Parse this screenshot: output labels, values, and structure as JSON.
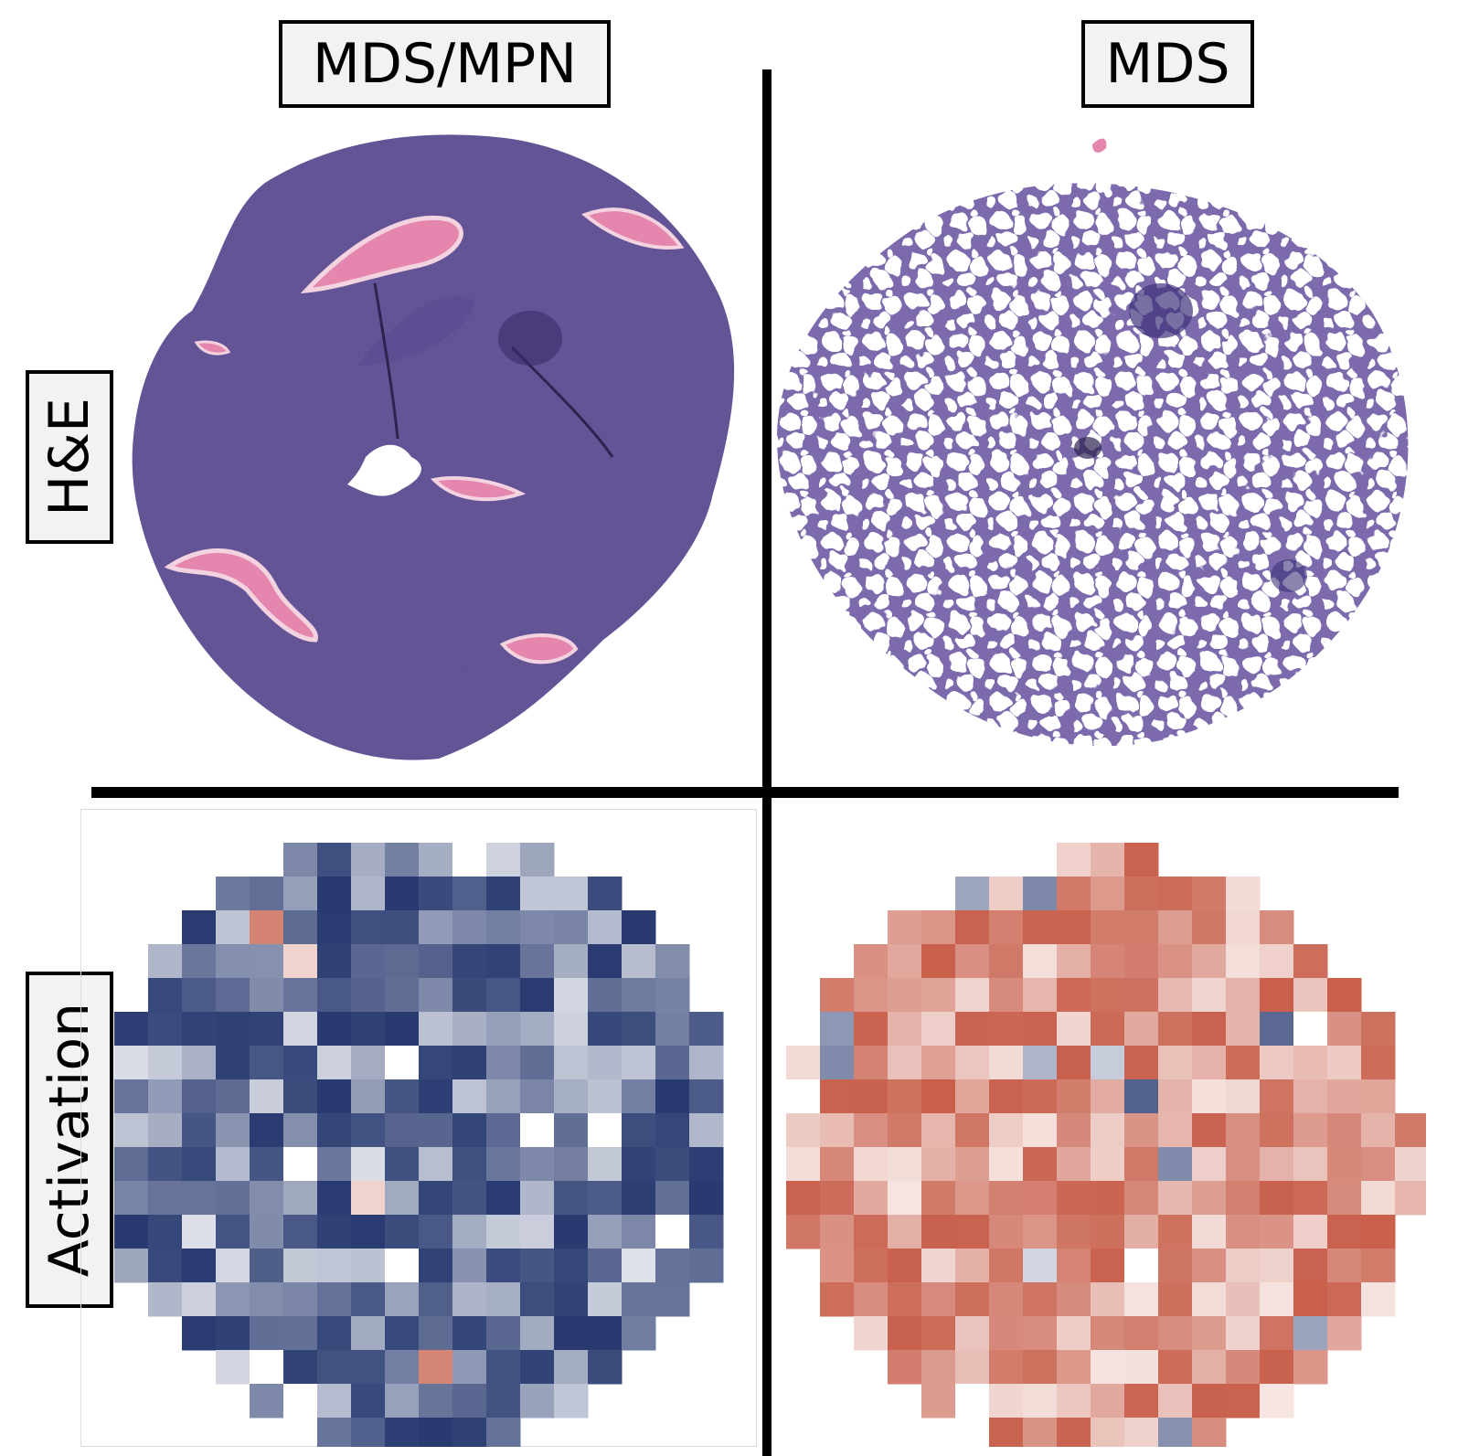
{
  "columns": [
    {
      "label": "MDS/MPN"
    },
    {
      "label": "MDS"
    }
  ],
  "rows": [
    {
      "label": "H&E"
    },
    {
      "label": "Activation"
    }
  ],
  "colors": {
    "tissue_purple": "#6a5aa0",
    "bone_pink": "#e486ad",
    "blue_high": "#283a70",
    "red_high": "#c8604c",
    "neutral": "#ffffff"
  },
  "panels": {
    "he_mdsmpn": "he-stain-dense-marrow",
    "he_mds": "he-stain-fatty-marrow",
    "activation_mdsmpn": "activation-heatmap-blue",
    "activation_mds": "activation-heatmap-red"
  }
}
